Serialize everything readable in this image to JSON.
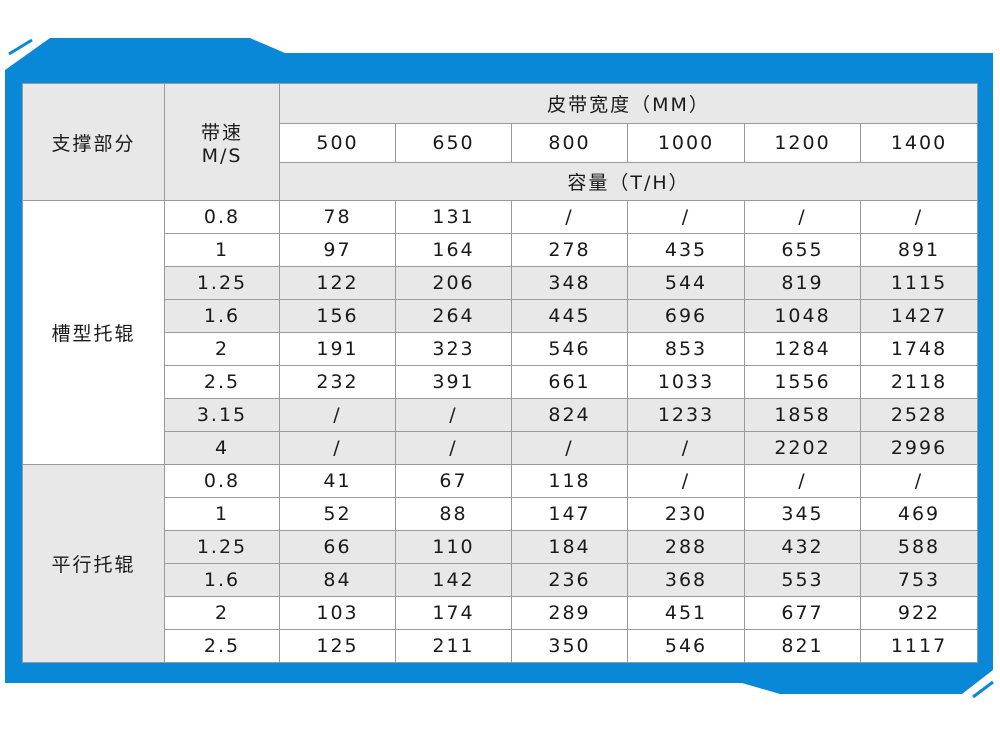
{
  "colors": {
    "frame": "#0a88d8",
    "header_bg": "#e8e8e8",
    "border": "#9a9a9a"
  },
  "header": {
    "support": "支撑部分",
    "speed": "带速",
    "speed_unit": "M/S",
    "width_title": "皮带宽度（MM）",
    "widths": [
      "500",
      "650",
      "800",
      "1000",
      "1200",
      "1400"
    ],
    "capacity_title": "容量（T/H）"
  },
  "groups": [
    {
      "label": "槽型托辊",
      "rows": [
        {
          "speed": "0.8",
          "values": [
            "78",
            "131",
            "/",
            "/",
            "/",
            "/"
          ],
          "shaded": false
        },
        {
          "speed": "1",
          "values": [
            "97",
            "164",
            "278",
            "435",
            "655",
            "891"
          ],
          "shaded": false
        },
        {
          "speed": "1.25",
          "values": [
            "122",
            "206",
            "348",
            "544",
            "819",
            "1115"
          ],
          "shaded": true
        },
        {
          "speed": "1.6",
          "values": [
            "156",
            "264",
            "445",
            "696",
            "1048",
            "1427"
          ],
          "shaded": true
        },
        {
          "speed": "2",
          "values": [
            "191",
            "323",
            "546",
            "853",
            "1284",
            "1748"
          ],
          "shaded": false
        },
        {
          "speed": "2.5",
          "values": [
            "232",
            "391",
            "661",
            "1033",
            "1556",
            "2118"
          ],
          "shaded": false
        },
        {
          "speed": "3.15",
          "values": [
            "/",
            "/",
            "824",
            "1233",
            "1858",
            "2528"
          ],
          "shaded": true
        },
        {
          "speed": "4",
          "values": [
            "/",
            "/",
            "/",
            "/",
            "2202",
            "2996"
          ],
          "shaded": true
        }
      ]
    },
    {
      "label": "平行托辊",
      "rows": [
        {
          "speed": "0.8",
          "values": [
            "41",
            "67",
            "118",
            "/",
            "/",
            "/"
          ],
          "shaded": false
        },
        {
          "speed": "1",
          "values": [
            "52",
            "88",
            "147",
            "230",
            "345",
            "469"
          ],
          "shaded": false
        },
        {
          "speed": "1.25",
          "values": [
            "66",
            "110",
            "184",
            "288",
            "432",
            "588"
          ],
          "shaded": true
        },
        {
          "speed": "1.6",
          "values": [
            "84",
            "142",
            "236",
            "368",
            "553",
            "753"
          ],
          "shaded": true
        },
        {
          "speed": "2",
          "values": [
            "103",
            "174",
            "289",
            "451",
            "677",
            "922"
          ],
          "shaded": false
        },
        {
          "speed": "2.5",
          "values": [
            "125",
            "211",
            "350",
            "546",
            "821",
            "1117"
          ],
          "shaded": false
        }
      ]
    }
  ]
}
